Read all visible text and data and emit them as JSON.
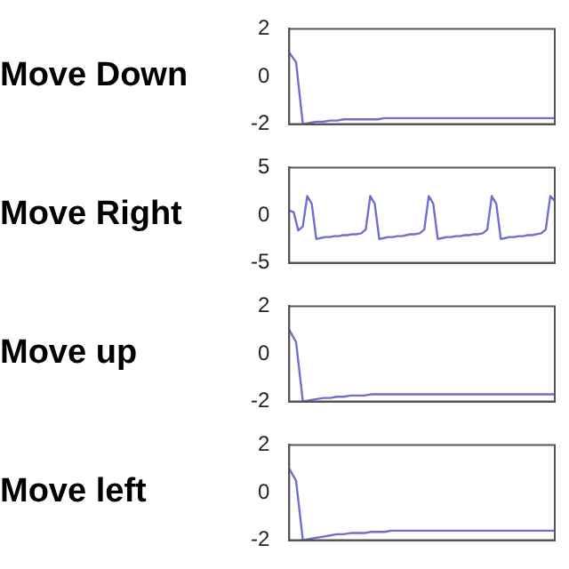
{
  "chart_data": [
    {
      "type": "line",
      "title": "Move Down",
      "categories": [
        null,
        null,
        null,
        null,
        null,
        null,
        null,
        null,
        null,
        null,
        null,
        null,
        null,
        null,
        null,
        null,
        null,
        null,
        null,
        null,
        null,
        null,
        null,
        null,
        null,
        null,
        null,
        null,
        null,
        null,
        null,
        null,
        null,
        null,
        null,
        null,
        null,
        null,
        null,
        null
      ],
      "series": [
        {
          "color": "#6f6fd0",
          "values": [
            1.0,
            0.6,
            -2.0,
            -1.95,
            -1.9,
            -1.9,
            -1.85,
            -1.85,
            -1.8,
            -1.8,
            -1.8,
            -1.8,
            -1.8,
            -1.8,
            -1.75,
            -1.75,
            -1.75,
            -1.75,
            -1.75,
            -1.75,
            -1.75,
            -1.75,
            -1.75,
            -1.75,
            -1.75,
            -1.75,
            -1.75,
            -1.75,
            -1.75,
            -1.75,
            -1.75,
            -1.75,
            -1.75,
            -1.75,
            -1.75,
            -1.75,
            -1.75,
            -1.75,
            -1.75,
            -1.75
          ]
        }
      ],
      "ylim": [
        -2,
        2
      ],
      "yticks": [
        -2,
        0,
        2
      ],
      "grid": false,
      "legend": false,
      "tick_labels": "y",
      "marker": "none",
      "line_style": "solid"
    },
    {
      "type": "line",
      "title": "Move Right",
      "categories": [
        null,
        null,
        null,
        null,
        null,
        null,
        null,
        null,
        null,
        null,
        null,
        null,
        null,
        null,
        null,
        null,
        null,
        null,
        null,
        null,
        null,
        null,
        null,
        null,
        null,
        null,
        null,
        null,
        null,
        null,
        null,
        null,
        null,
        null,
        null,
        null,
        null,
        null,
        null,
        null,
        null,
        null,
        null,
        null,
        null,
        null,
        null,
        null,
        null,
        null,
        null,
        null,
        null,
        null,
        null,
        null,
        null,
        null,
        null,
        null
      ],
      "series": [
        {
          "color": "#6f6fd0",
          "values": [
            0.5,
            0.3,
            -1.6,
            -1.2,
            2.0,
            1.2,
            -2.5,
            -2.4,
            -2.3,
            -2.3,
            -2.2,
            -2.2,
            -2.1,
            -2.1,
            -2.0,
            -2.0,
            -1.9,
            -1.5,
            2.0,
            1.2,
            -2.5,
            -2.4,
            -2.3,
            -2.3,
            -2.2,
            -2.2,
            -2.1,
            -2.0,
            -2.0,
            -1.9,
            -1.5,
            2.0,
            1.2,
            -2.5,
            -2.4,
            -2.3,
            -2.3,
            -2.2,
            -2.2,
            -2.1,
            -2.1,
            -2.0,
            -2.0,
            -1.9,
            -1.5,
            2.0,
            1.2,
            -2.5,
            -2.4,
            -2.3,
            -2.3,
            -2.2,
            -2.2,
            -2.1,
            -2.1,
            -2.0,
            -1.9,
            -1.5,
            2.0,
            1.5
          ]
        }
      ],
      "ylim": [
        -5,
        5
      ],
      "yticks": [
        -5,
        0,
        5
      ],
      "grid": false,
      "legend": false,
      "tick_labels": "y",
      "marker": "none",
      "line_style": "solid"
    },
    {
      "type": "line",
      "title": "Move up",
      "categories": [
        null,
        null,
        null,
        null,
        null,
        null,
        null,
        null,
        null,
        null,
        null,
        null,
        null,
        null,
        null,
        null,
        null,
        null,
        null,
        null,
        null,
        null,
        null,
        null,
        null,
        null,
        null,
        null,
        null,
        null,
        null,
        null,
        null,
        null,
        null,
        null,
        null,
        null,
        null,
        null
      ],
      "series": [
        {
          "color": "#6f6fd0",
          "values": [
            1.0,
            0.5,
            -2.0,
            -1.95,
            -1.9,
            -1.85,
            -1.85,
            -1.8,
            -1.8,
            -1.75,
            -1.75,
            -1.75,
            -1.7,
            -1.7,
            -1.7,
            -1.7,
            -1.7,
            -1.7,
            -1.7,
            -1.7,
            -1.7,
            -1.7,
            -1.7,
            -1.7,
            -1.7,
            -1.7,
            -1.7,
            -1.7,
            -1.7,
            -1.7,
            -1.7,
            -1.7,
            -1.7,
            -1.7,
            -1.7,
            -1.7,
            -1.7,
            -1.7,
            -1.7,
            -1.7
          ]
        }
      ],
      "ylim": [
        -2,
        2
      ],
      "yticks": [
        -2,
        0,
        2
      ],
      "grid": false,
      "legend": false,
      "tick_labels": "y",
      "marker": "none",
      "line_style": "solid"
    },
    {
      "type": "line",
      "title": "Move left",
      "categories": [
        null,
        null,
        null,
        null,
        null,
        null,
        null,
        null,
        null,
        null,
        null,
        null,
        null,
        null,
        null,
        null,
        null,
        null,
        null,
        null,
        null,
        null,
        null,
        null,
        null,
        null,
        null,
        null,
        null,
        null,
        null,
        null,
        null,
        null,
        null,
        null,
        null,
        null,
        null,
        null
      ],
      "series": [
        {
          "color": "#6f6fd0",
          "values": [
            1.0,
            0.5,
            -2.0,
            -1.95,
            -1.9,
            -1.85,
            -1.8,
            -1.75,
            -1.75,
            -1.7,
            -1.7,
            -1.7,
            -1.65,
            -1.65,
            -1.65,
            -1.6,
            -1.6,
            -1.6,
            -1.6,
            -1.6,
            -1.6,
            -1.6,
            -1.6,
            -1.6,
            -1.6,
            -1.6,
            -1.6,
            -1.6,
            -1.6,
            -1.6,
            -1.6,
            -1.6,
            -1.6,
            -1.6,
            -1.6,
            -1.6,
            -1.6,
            -1.6,
            -1.6,
            -1.6
          ]
        }
      ],
      "ylim": [
        -2,
        2
      ],
      "yticks": [
        -2,
        0,
        2
      ],
      "grid": false,
      "legend": false,
      "tick_labels": "y",
      "marker": "none",
      "line_style": "solid"
    }
  ]
}
